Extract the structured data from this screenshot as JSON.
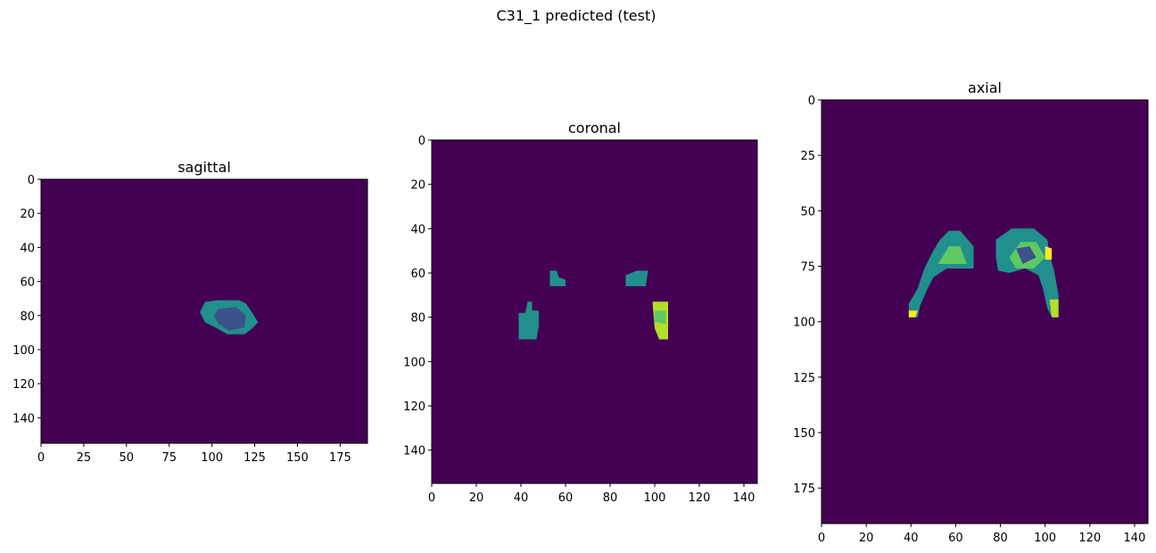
{
  "figure": {
    "suptitle": "C31_1 predicted (test)",
    "colormap": "viridis",
    "colors": {
      "background": "#440154",
      "low": "#3b528b",
      "mid": "#21908c",
      "high": "#5ec962",
      "peak": "#b5de2b",
      "max": "#fde725"
    }
  },
  "panels": [
    {
      "title": "sagittal",
      "x_range": [
        0,
        191
      ],
      "y_range": [
        0,
        155
      ],
      "x_tick_labels": [
        "0",
        "25",
        "50",
        "75",
        "100",
        "125",
        "150",
        "175"
      ],
      "y_tick_labels": [
        "0",
        "20",
        "40",
        "60",
        "80",
        "100",
        "120",
        "140"
      ]
    },
    {
      "title": "coronal",
      "x_range": [
        0,
        146
      ],
      "y_range": [
        0,
        155
      ],
      "x_tick_labels": [
        "0",
        "20",
        "40",
        "60",
        "80",
        "100",
        "120",
        "140"
      ],
      "y_tick_labels": [
        "0",
        "20",
        "40",
        "60",
        "80",
        "100",
        "120",
        "140"
      ]
    },
    {
      "title": "axial",
      "x_range": [
        0,
        146
      ],
      "y_range": [
        0,
        191
      ],
      "x_tick_labels": [
        "0",
        "20",
        "40",
        "60",
        "80",
        "100",
        "120",
        "140"
      ],
      "y_tick_labels": [
        "0",
        "25",
        "50",
        "75",
        "100",
        "125",
        "150",
        "175"
      ]
    }
  ]
}
